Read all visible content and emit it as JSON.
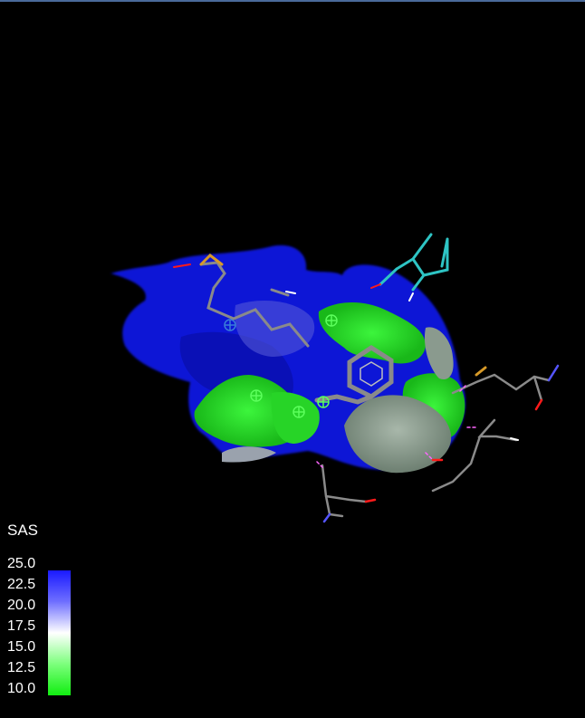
{
  "legend": {
    "title": "SAS",
    "ticks": [
      "25.0",
      "22.5",
      "20.0",
      "17.5",
      "15.0",
      "12.5",
      "10.0"
    ],
    "colors": {
      "high": "#1a1aff",
      "mid": "#ffffff",
      "low": "#11ee11"
    }
  },
  "scene": {
    "background": "#000000",
    "surface_colors": {
      "blue": "#0f16d6",
      "green": "#2fe12f",
      "grey": "#8a9a8e"
    },
    "stick_colors": {
      "carbon": "#8a8a8a",
      "oxygen": "#ff1a1a",
      "nitrogen": "#5555ff",
      "hydrogen": "#ffffff",
      "sulfur": "#d79a28",
      "ligand": "#2ec4c4",
      "hbond": "#ff66ff"
    }
  }
}
